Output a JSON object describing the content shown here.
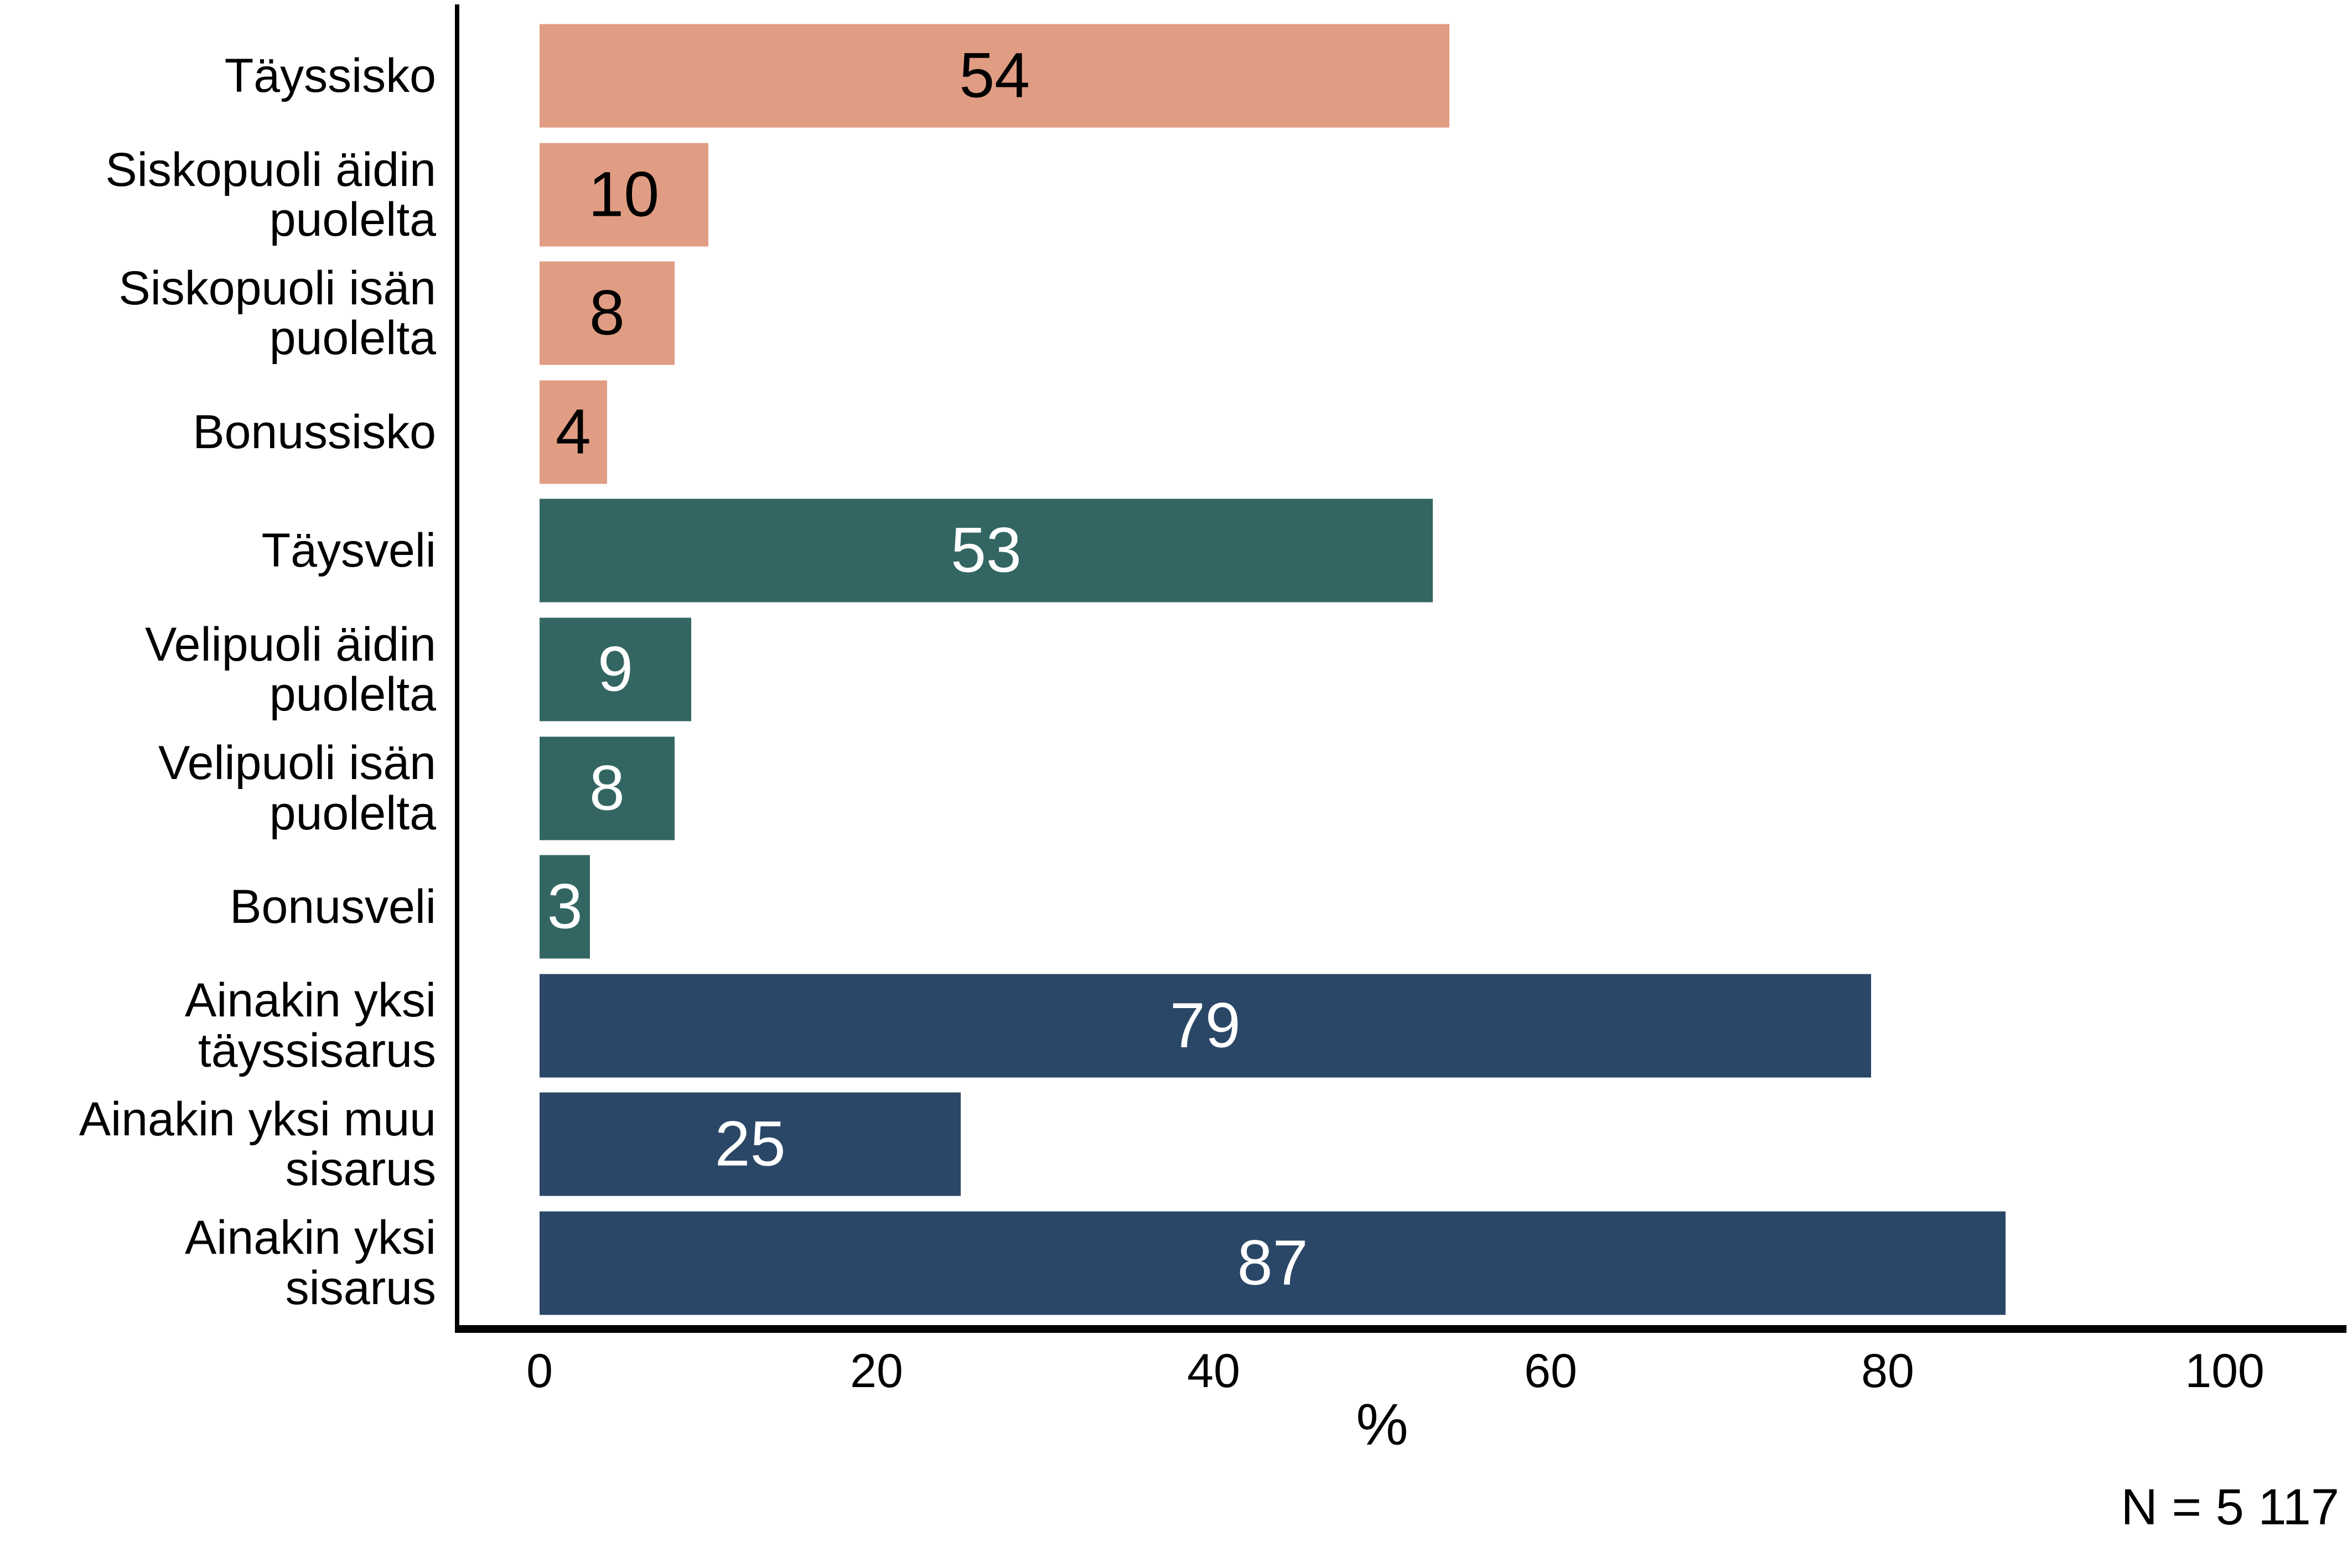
{
  "chart_data": {
    "type": "bar",
    "orientation": "horizontal",
    "title": "",
    "xlabel": "%",
    "ylabel": "",
    "xlim": [
      0,
      100
    ],
    "xticks": [
      0,
      20,
      40,
      60,
      80,
      100
    ],
    "grid": false,
    "legend": false,
    "background": "#FFFFFF",
    "axis_color": "#000000",
    "categories": [
      "Täyssisko",
      "Siskopuoli äidin\npuolelta",
      "Siskopuoli isän\npuolelta",
      "Bonussisko",
      "Täysveli",
      "Velipuoli äidin\npuolelta",
      "Velipuoli isän\npuolelta",
      "Bonusveli",
      "Ainakin yksi\ntäyssisarus",
      "Ainakin yksi muu\nsisarus",
      "Ainakin yksi\nsisarus"
    ],
    "values": [
      54,
      10,
      8,
      4,
      53,
      9,
      8,
      3,
      79,
      25,
      87
    ],
    "groups": [
      "sisko",
      "sisko",
      "sisko",
      "sisko",
      "veli",
      "veli",
      "veli",
      "veli",
      "sisarus",
      "sisarus",
      "sisarus"
    ],
    "group_colors": {
      "sisko": "#E09D83",
      "veli": "#336663",
      "sisarus": "#2B4767"
    },
    "value_label_colors": {
      "sisko": "#000000",
      "veli": "#FFFFFF",
      "sisarus": "#FFFFFF"
    },
    "note": "N = 5 117"
  }
}
